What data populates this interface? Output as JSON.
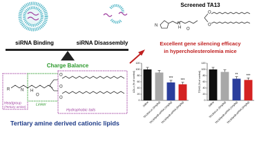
{
  "left": {
    "binding": "siRNA Binding",
    "disassembly": "siRNA Disassembly",
    "balance": "Charge Balance",
    "headgroup": "Headgroup",
    "headgroup_sub": "(Tertiary amine)",
    "linker": "Linker",
    "tails": "Hydrophobic tails",
    "caption": "Tertiary amine derived cationic lipids",
    "atoms": [
      "R",
      "N",
      "H",
      "O",
      "O",
      "O",
      "O"
    ]
  },
  "right": {
    "title": "Screened TA13",
    "caption": [
      "Excellent gene silencing efficacy",
      "in hypercholesterolemia mice"
    ],
    "atoms": [
      "N",
      "H",
      "N",
      "O",
      "O",
      "O"
    ]
  },
  "charts": [
    {
      "type": "bar",
      "y_label": "LDL-c (% of control)",
      "categories": [
        "Saline",
        "TA13/siLuc (3mg/kg)",
        "TA13/ApoB-siRNA (1mg/kg)",
        "TA13/ApoB-siRNA (3mg/kg)"
      ],
      "values": [
        100,
        90,
        58,
        52
      ],
      "colors": [
        "#111111",
        "#a8a8a8",
        "#2b3e9c",
        "#d42222"
      ],
      "annotations": [
        null,
        null,
        "***",
        "***"
      ],
      "ylim": [
        0,
        120
      ],
      "yticks": [
        0,
        20,
        40,
        60,
        80,
        100,
        120
      ]
    },
    {
      "type": "bar",
      "y_label": "TCHO (% of control)",
      "categories": [
        "Saline",
        "TA13/siLuc (3mg/kg)",
        "TA13/ApoB-siRNA (1mg/kg)",
        "TA13/ApoB-siRNA (3mg/kg)"
      ],
      "values": [
        100,
        92,
        70,
        66
      ],
      "colors": [
        "#111111",
        "#a8a8a8",
        "#2b3e9c",
        "#d42222"
      ],
      "annotations": [
        null,
        null,
        "**",
        "***"
      ],
      "ylim": [
        0,
        120
      ],
      "yticks": [
        0,
        20,
        40,
        60,
        80,
        100,
        120
      ]
    }
  ]
}
